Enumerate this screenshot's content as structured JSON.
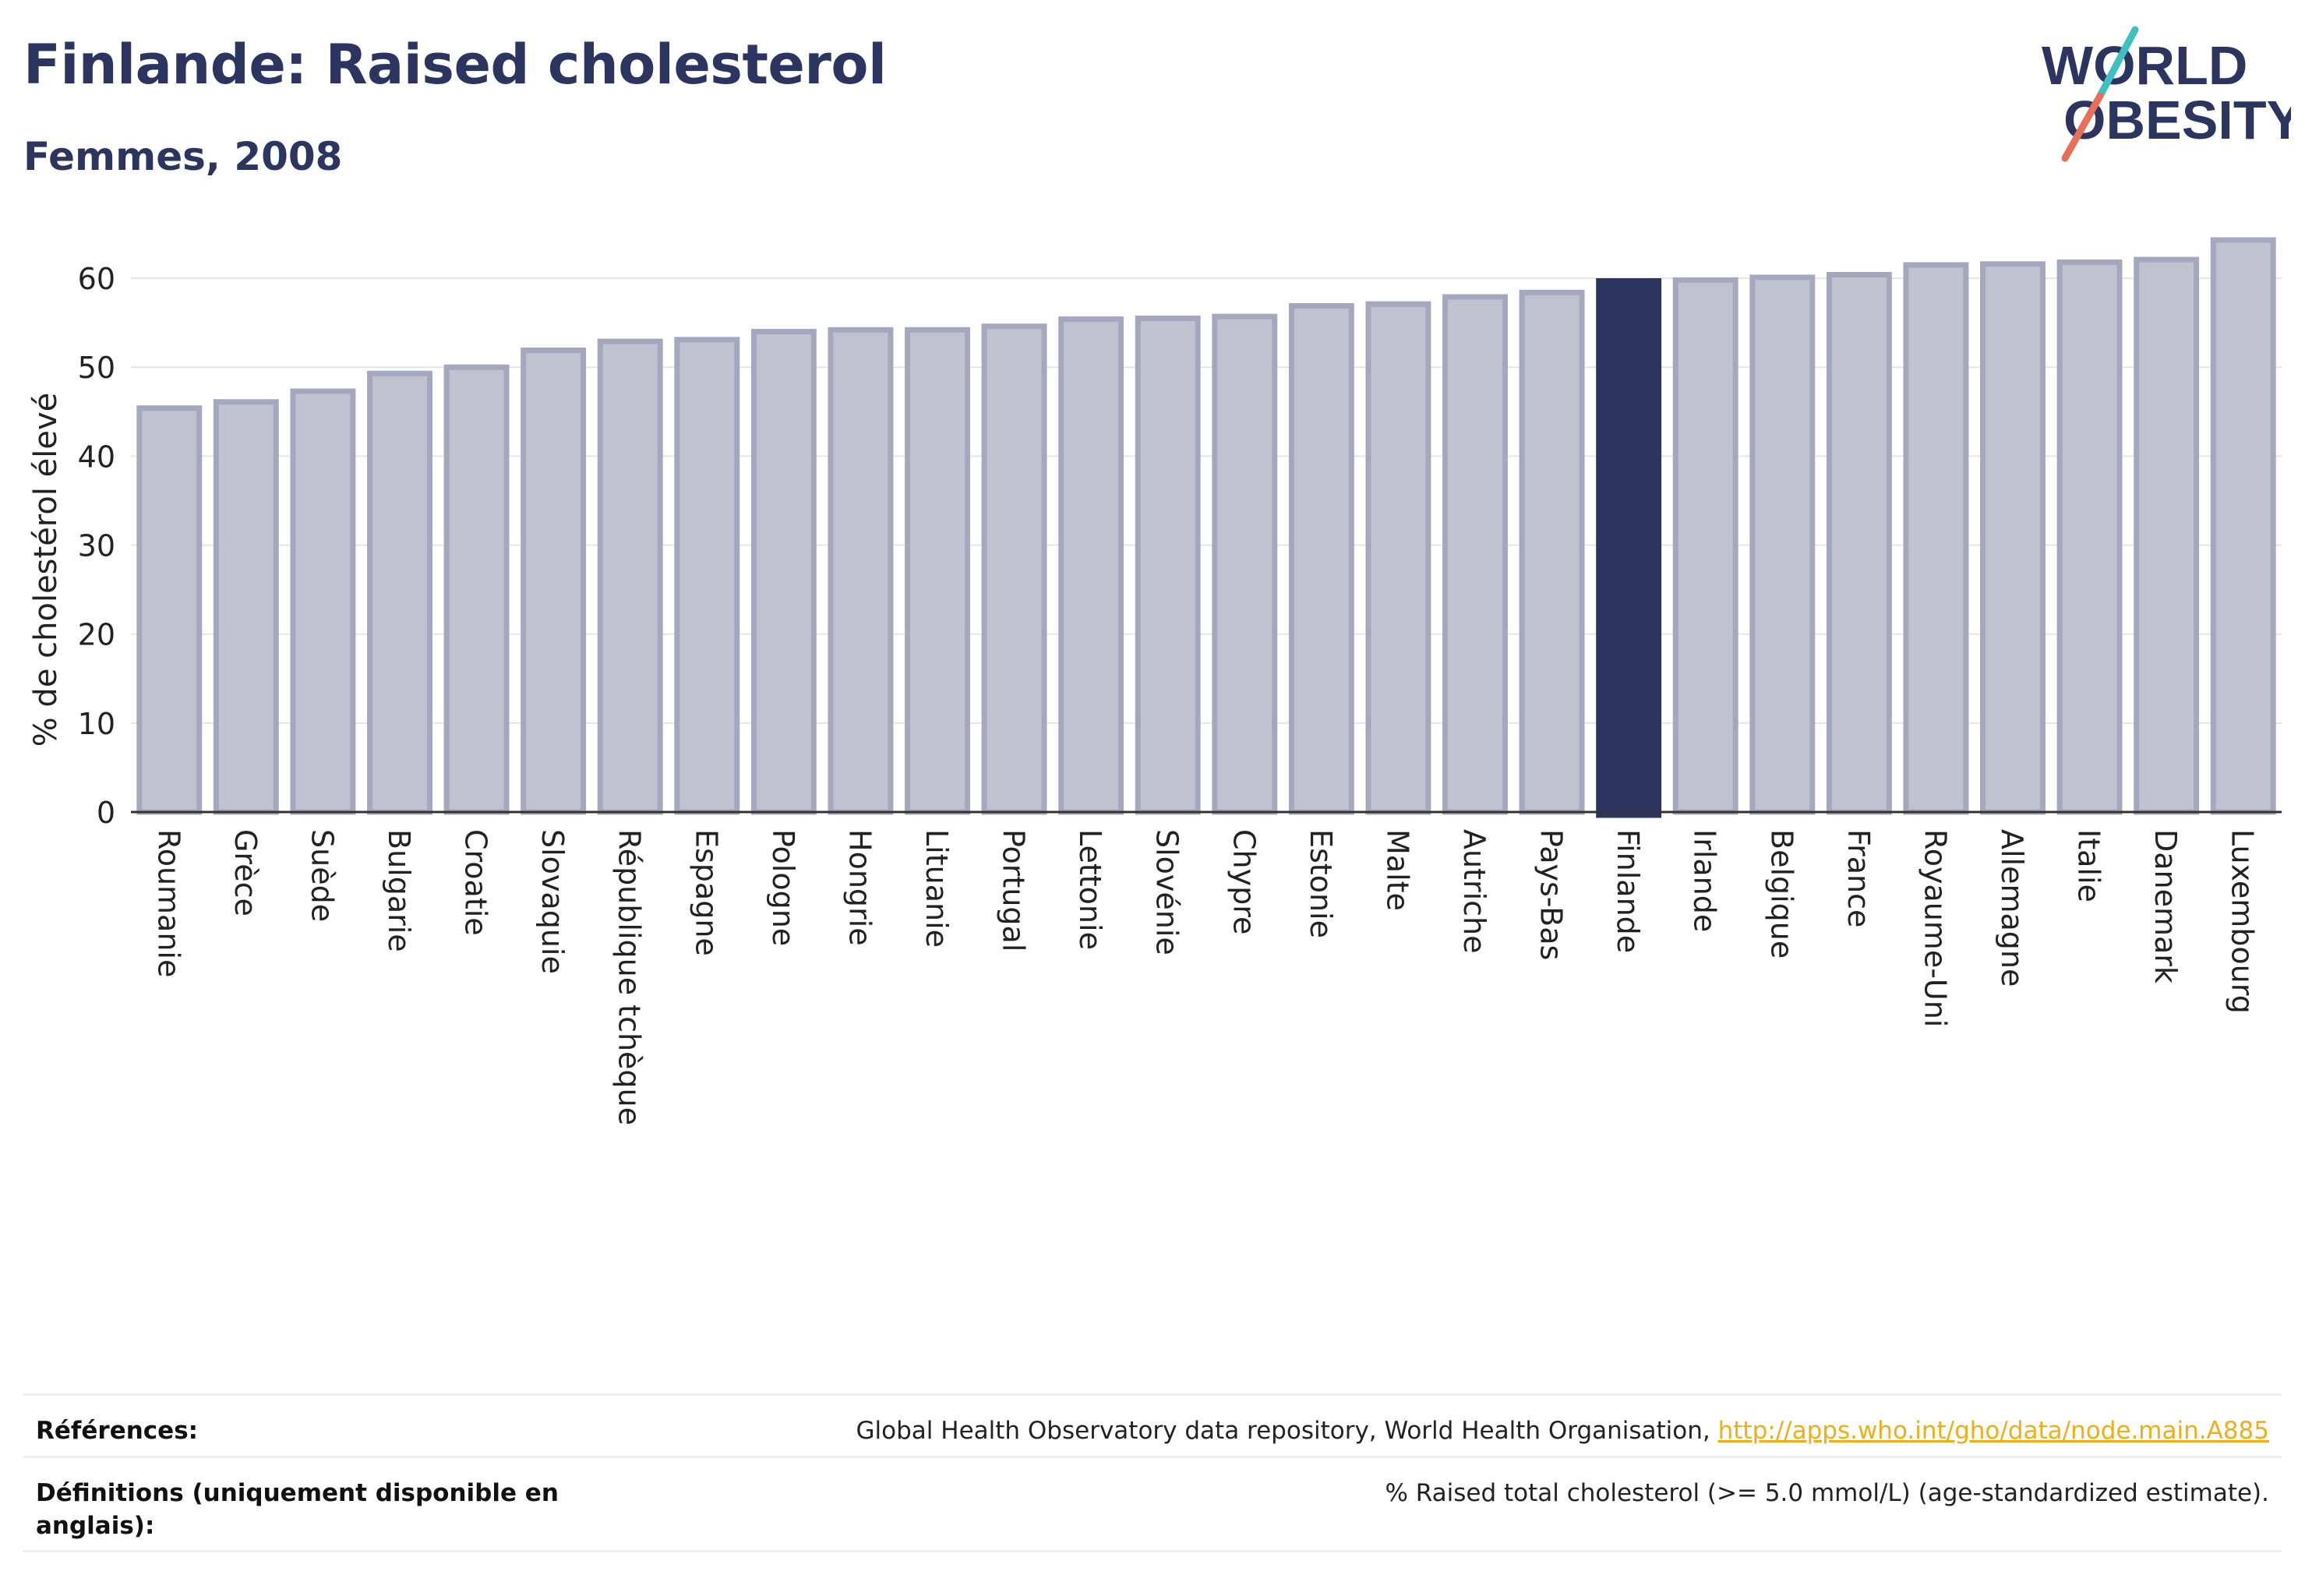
{
  "header": {
    "title": "Finlande: Raised cholesterol",
    "subtitle": "Femmes, 2008"
  },
  "logo": {
    "line1": "WORLD",
    "line2": "OBESITY",
    "text_color": "#2b3560",
    "slash_color_top": "#3cc0c0",
    "slash_color_bottom": "#e8705a"
  },
  "chart_data": {
    "type": "bar",
    "ylabel": "% de cholestérol élevé",
    "ylim": [
      0,
      65
    ],
    "yticks": [
      0,
      10,
      20,
      30,
      40,
      50,
      60
    ],
    "grid": true,
    "highlight": "Finlande",
    "bar_color": "#c0c3cf",
    "bar_border_color": "#a3a8be",
    "highlight_color": "#2b3560",
    "categories": [
      "Roumanie",
      "Grèce",
      "Suède",
      "Bulgarie",
      "Croatie",
      "Slovaquie",
      "République tchèque",
      "Espagne",
      "Pologne",
      "Hongrie",
      "Lituanie",
      "Portugal",
      "Lettonie",
      "Slovénie",
      "Chypre",
      "Estonie",
      "Malte",
      "Autriche",
      "Pays-Bas",
      "Finlande",
      "Irlande",
      "Belgique",
      "France",
      "Royaume-Uni",
      "Allemagne",
      "Italie",
      "Danemark",
      "Luxembourg"
    ],
    "values": [
      45.4,
      46.1,
      47.3,
      49.3,
      50.0,
      51.9,
      52.9,
      53.1,
      54.0,
      54.2,
      54.2,
      54.6,
      55.4,
      55.5,
      55.7,
      56.9,
      57.1,
      57.9,
      58.4,
      59.7,
      59.8,
      60.1,
      60.4,
      61.5,
      61.6,
      61.8,
      62.1,
      64.3
    ]
  },
  "footer": {
    "references_label": "Références:",
    "references_text": "Global Health Observatory data repository, World Health Organisation, ",
    "references_link": "http://apps.who.int/gho/data/node.main.A885",
    "definitions_label": "Définitions (uniquement disponible en anglais):",
    "definitions_text": "% Raised total cholesterol (>= 5.0 mmol/L) (age-standardized estimate)."
  }
}
